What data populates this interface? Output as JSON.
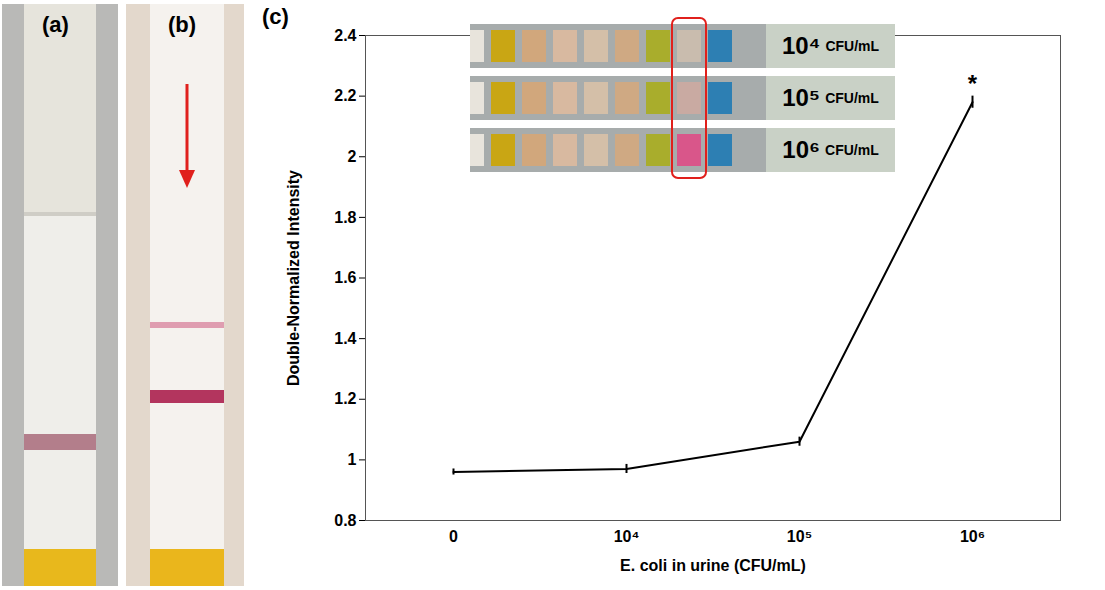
{
  "chart_data": {
    "type": "line",
    "panel_labels": [
      "(a)",
      "(b)",
      "(c)"
    ],
    "x_label": "E. coli in urine (CFU/mL)",
    "y_label": "Double-Normalized Intensity",
    "categories": [
      "0",
      "10⁴",
      "10⁵",
      "10⁶"
    ],
    "values": [
      0.96,
      0.97,
      1.06,
      2.18
    ],
    "errors": [
      0.01,
      0.015,
      0.015,
      0.02
    ],
    "color": "#000000",
    "ylim": [
      0.8,
      2.4
    ],
    "yticks": [
      0.8,
      1,
      1.2,
      1.4,
      1.6,
      1.8,
      2,
      2.2,
      2.4
    ],
    "annotations": [
      {
        "text": "*",
        "category": "10⁶"
      }
    ],
    "inset_labels": [
      "10⁴ CFU/mL",
      "10⁵ CFU/mL",
      "10⁶ CFU/mL"
    ]
  }
}
